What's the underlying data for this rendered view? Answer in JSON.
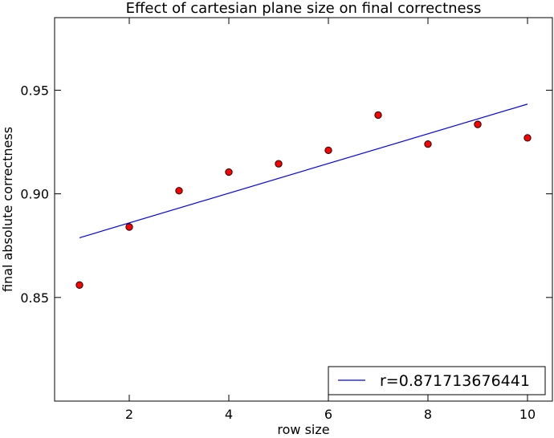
{
  "chart_data": {
    "type": "scatter",
    "title": "Effect of cartesian plane size on final correctness",
    "xlabel": "row size",
    "ylabel": "final absolute correctness",
    "xlim": [
      0.5,
      10.5
    ],
    "ylim": [
      0.8,
      0.985
    ],
    "xticks": [
      2,
      4,
      6,
      8,
      10
    ],
    "yticks": [
      0.85,
      0.9,
      0.95
    ],
    "xtick_labels": [
      "2",
      "4",
      "6",
      "8",
      "10"
    ],
    "ytick_labels": [
      "0.85",
      "0.90",
      "0.95"
    ],
    "grid": false,
    "legend_position": "lower-right",
    "series": [
      {
        "type": "scatter",
        "marker_color": "#ff0000",
        "x": [
          1,
          2,
          3,
          4,
          5,
          6,
          7,
          8,
          9,
          10
        ],
        "y": [
          0.856,
          0.884,
          0.9015,
          0.9105,
          0.9145,
          0.921,
          0.938,
          0.924,
          0.9335,
          0.927
        ]
      },
      {
        "type": "line",
        "name": "r=0.871713676441",
        "line_color": "#0000ff",
        "x": [
          1,
          10
        ],
        "y": [
          0.8788,
          0.9433
        ]
      }
    ]
  }
}
